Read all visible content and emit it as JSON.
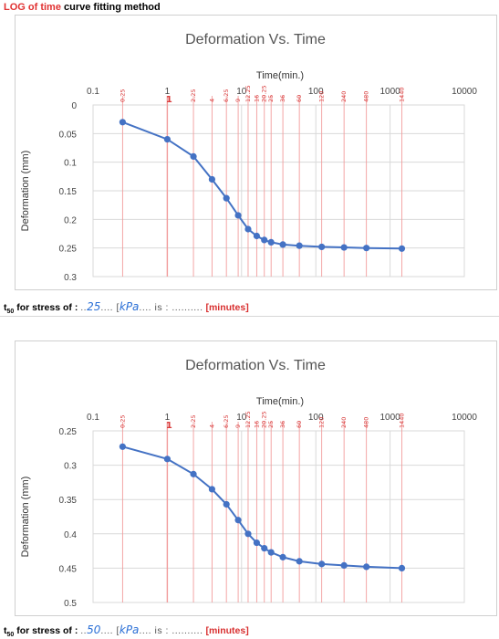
{
  "page_title_red": "LOG of time",
  "page_title_rest": " curve fitting method",
  "charts": [
    {
      "t50": {
        "prefix": "t",
        "sub": "50",
        "label": " for stress of : ",
        "dots1": "..",
        "value": "25",
        "dots2": ".... [",
        "unit": "kPa",
        "dots3": ".... is : ",
        "dots4": "..........",
        "result_unit": "[minutes]"
      }
    },
    {
      "t50": {
        "prefix": "t",
        "sub": "50",
        "label": " for stress of : ",
        "dots1": "..",
        "value": "50",
        "dots2": ".... [",
        "unit": "kPa",
        "dots3": ".... is : ",
        "dots4": "..........",
        "result_unit": "[minutes]"
      }
    }
  ],
  "chart_data": [
    {
      "type": "line",
      "title": "Deformation Vs. Time",
      "xlabel": "Time(min.)",
      "ylabel": "Deformation (mm)",
      "x_scale": "log",
      "xlim": [
        0.1,
        10000
      ],
      "ylim": [
        0,
        0.3
      ],
      "y_inverted": true,
      "x_ticks": [
        "0.1",
        "1",
        "10",
        "100",
        "1000",
        "10000"
      ],
      "y_ticks": [
        "0",
        "0.05",
        "0.1",
        "0.15",
        "0.2",
        "0.25",
        "0.3"
      ],
      "x": [
        0.25,
        1,
        2.25,
        4,
        6.25,
        9,
        12.25,
        16,
        20.25,
        25,
        36,
        60,
        120,
        240,
        480,
        1440
      ],
      "time_marker_labels": [
        "0.25",
        "1",
        "2.25",
        "4",
        "6.25",
        "9",
        "12.25",
        "16",
        "20.25",
        "25",
        "36",
        "60",
        "120",
        "240",
        "480",
        "1440"
      ],
      "series": [
        {
          "values": [
            0.03,
            0.06,
            0.09,
            0.13,
            0.163,
            0.193,
            0.217,
            0.229,
            0.236,
            0.24,
            0.244,
            0.246,
            0.248,
            0.249,
            0.25,
            0.251
          ]
        }
      ],
      "line_color": "#4472c4",
      "marker_color": "#e8524a"
    },
    {
      "type": "line",
      "title": "Deformation Vs. Time",
      "xlabel": "Time(min.)",
      "ylabel": "Deformation (mm)",
      "x_scale": "log",
      "xlim": [
        0.1,
        10000
      ],
      "ylim": [
        0.25,
        0.5
      ],
      "y_inverted": true,
      "x_ticks": [
        "0.1",
        "1",
        "10",
        "100",
        "1000",
        "10000"
      ],
      "y_ticks": [
        "0.25",
        "0.3",
        "0.35",
        "0.4",
        "0.45",
        "0.5"
      ],
      "x": [
        0.25,
        1,
        2.25,
        4,
        6.25,
        9,
        12.25,
        16,
        20.25,
        25,
        36,
        60,
        120,
        240,
        480,
        1440
      ],
      "time_marker_labels": [
        "0.25",
        "1",
        "2.25",
        "4",
        "6.25",
        "9",
        "12.25",
        "16",
        "20.25",
        "25",
        "36",
        "60",
        "120",
        "240",
        "480",
        "1440"
      ],
      "series": [
        {
          "values": [
            0.273,
            0.291,
            0.313,
            0.335,
            0.357,
            0.38,
            0.4,
            0.413,
            0.421,
            0.427,
            0.434,
            0.44,
            0.444,
            0.446,
            0.448,
            0.45
          ]
        }
      ],
      "line_color": "#4472c4",
      "marker_color": "#e8524a"
    }
  ]
}
